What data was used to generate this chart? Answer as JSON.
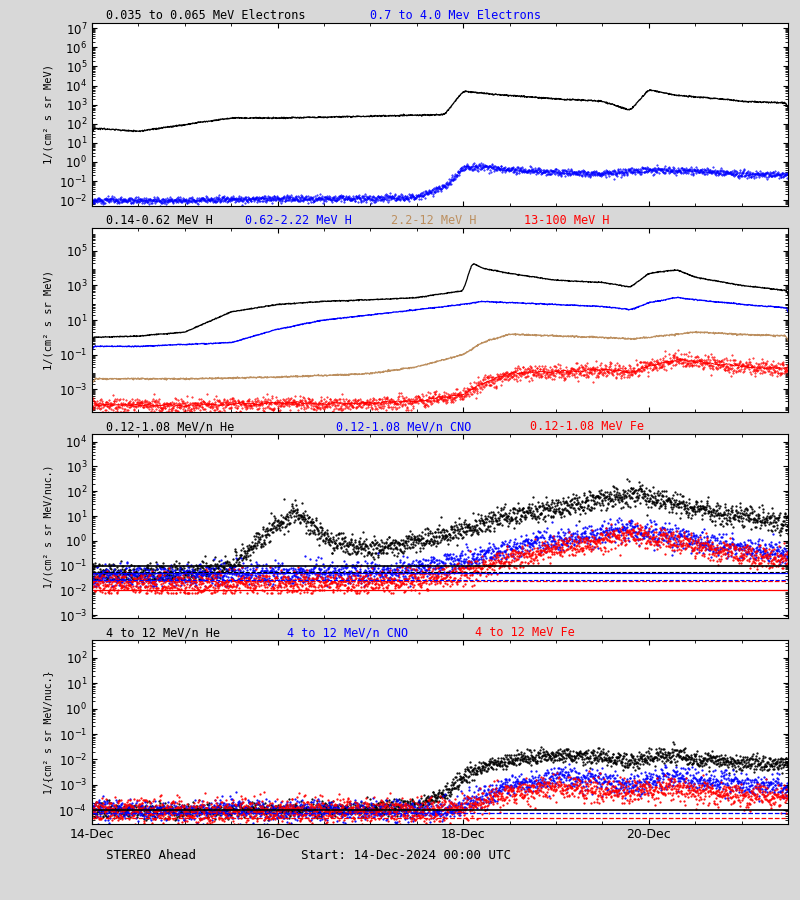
{
  "title_panel1": [
    "0.035 to 0.065 MeV Electrons",
    "0.7 to 4.0 Mev Electrons"
  ],
  "title_panel2": [
    "0.14-0.62 MeV H",
    "0.62-2.22 MeV H",
    "2.2-12 MeV H",
    "13-100 MeV H"
  ],
  "title_panel3": [
    "0.12-1.08 MeV/n He",
    "0.12-1.08 MeV/n CNO",
    "0.12-1.08 MeV Fe"
  ],
  "title_panel4": [
    "4 to 12 MeV/n He",
    "4 to 12 MeV/n CNO",
    "4 to 12 MeV Fe"
  ],
  "colors_panel1": [
    "black",
    "blue"
  ],
  "colors_panel2": [
    "black",
    "blue",
    "#bc8f5f",
    "red"
  ],
  "colors_panel3": [
    "black",
    "blue",
    "red"
  ],
  "colors_panel4": [
    "black",
    "blue",
    "red"
  ],
  "xlabel": "STEREO Ahead",
  "xlabel2": "Start: 14-Dec-2024 00:00 UTC",
  "ylabel1": "1/(cm² s sr MeV)",
  "ylabel2": "1/(cm² s sr MeV)",
  "ylabel3": "1/(cm² s sr MeV/nuc.)",
  "ylabel4": "1/{cm² s sr MeV/nuc.}",
  "xtick_labels": [
    "14-Dec",
    "16-Dec",
    "18-Dec",
    "20-Dec"
  ],
  "bg_color": "#d8d8d8",
  "plot_bg": "white",
  "n_days": 7.5,
  "panel1_ylim": [
    0.005,
    20000000.0
  ],
  "panel2_ylim": [
    5e-05,
    2000000.0
  ],
  "panel3_ylim": [
    0.0008,
    20000.0
  ],
  "panel4_ylim": [
    3e-05,
    500.0
  ]
}
